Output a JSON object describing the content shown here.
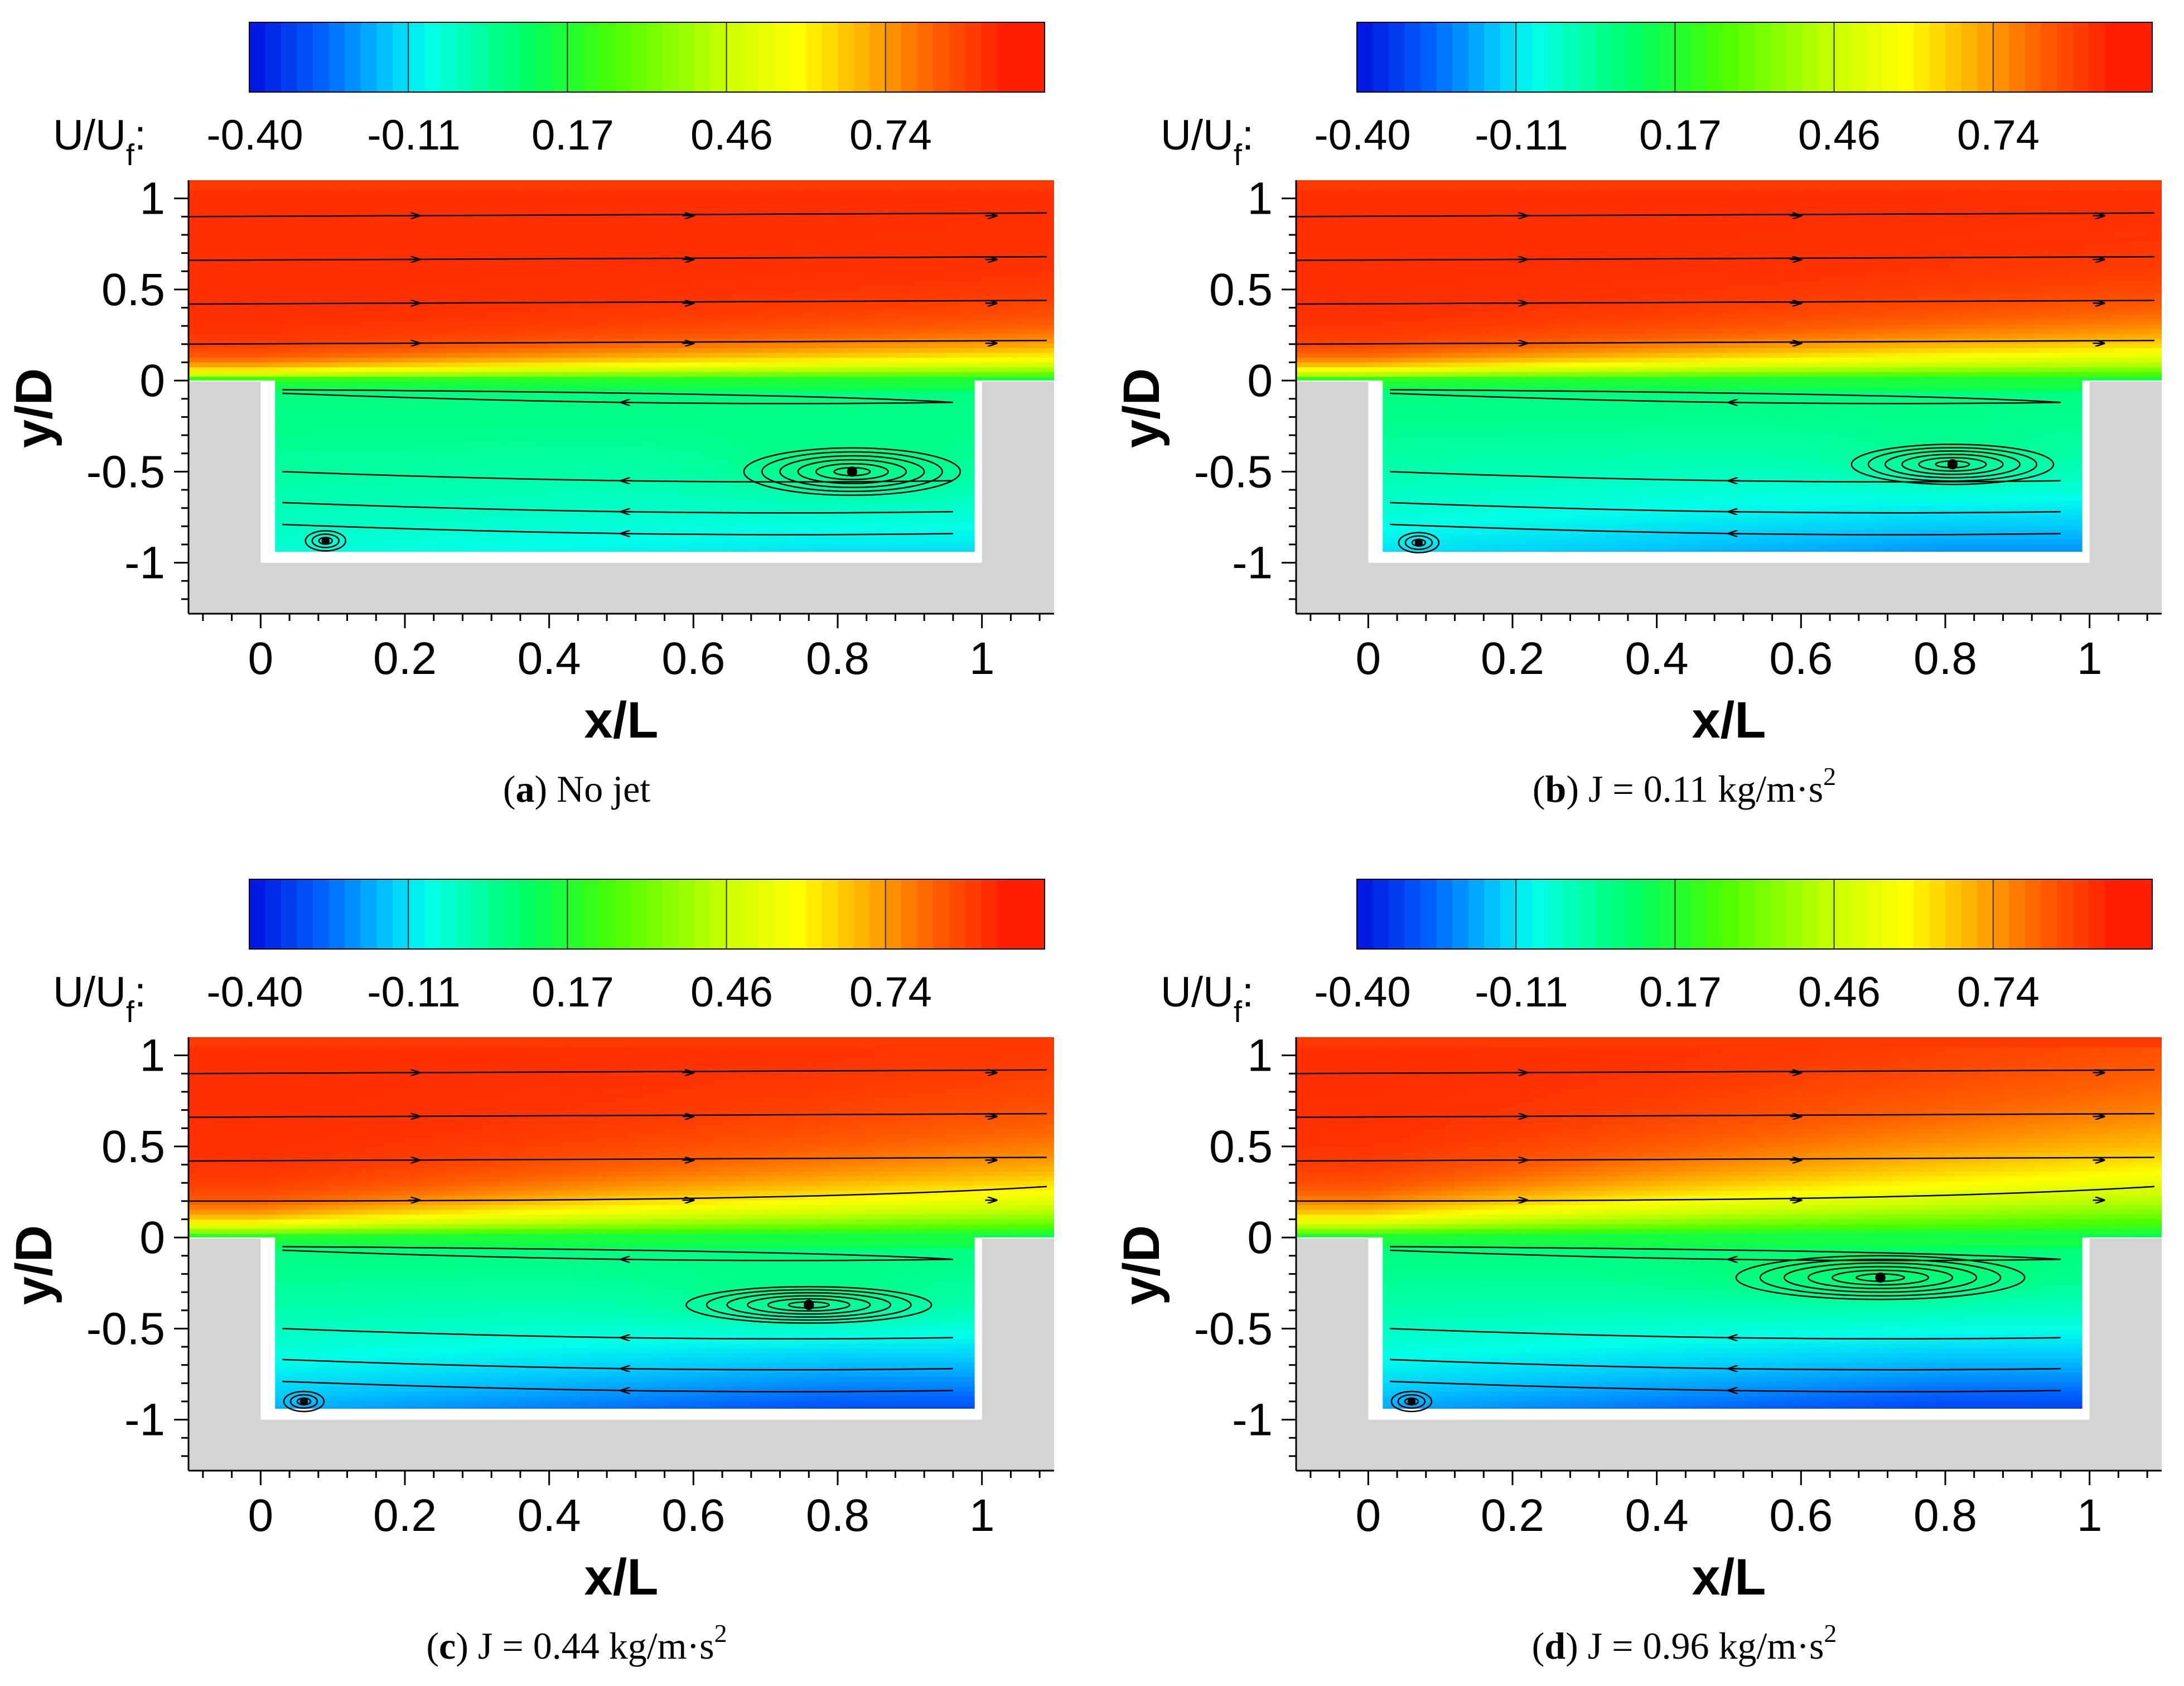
{
  "colorbar": {
    "label_main": "U/U",
    "label_sub": "f",
    "label_suffix": ":",
    "ticks": [
      "-0.40",
      "-0.11",
      "0.17",
      "0.46",
      "0.74"
    ],
    "colors": [
      "#0010e0",
      "#0068ff",
      "#00c8ff",
      "#00ffe8",
      "#00ff60",
      "#48ff00",
      "#c8ff00",
      "#ffff00",
      "#ffb000",
      "#ff6000",
      "#ff2000"
    ]
  },
  "colors": {
    "wall": "#d4d4d4",
    "streamline": "#000000"
  },
  "panels": [
    {
      "id": "a",
      "caption": {
        "letter": "a",
        "text": "No jet"
      },
      "chart_data": {
        "type": "heatmap",
        "quantity": "U/U_f",
        "xlabel": "x/L",
        "ylabel": "y/D",
        "xlim": [
          -0.1,
          1.1
        ],
        "ylim": [
          -1.28,
          1.1
        ],
        "xticks": [
          "0",
          "0.2",
          "0.4",
          "0.6",
          "0.8",
          "1"
        ],
        "yticks": [
          "1",
          "0.5",
          "0",
          "-0.5",
          "-1"
        ],
        "main_vortex": {
          "x": 0.82,
          "y": -0.5,
          "rx": 0.15,
          "ry": 0.13
        },
        "corner_vortex": {
          "x": 0.09,
          "y": -0.88
        },
        "shear_layer_spread": 0.05,
        "cavity_floor_value": -0.2
      }
    },
    {
      "id": "b",
      "caption": {
        "letter": "b",
        "text": "J = 0.11  kg/m·s",
        "sup": "2"
      },
      "chart_data": {
        "type": "heatmap",
        "quantity": "U/U_f",
        "xlabel": "x/L",
        "ylabel": "y/D",
        "xlim": [
          -0.1,
          1.1
        ],
        "ylim": [
          -1.28,
          1.1
        ],
        "xticks": [
          "0",
          "0.2",
          "0.4",
          "0.6",
          "0.8",
          "1"
        ],
        "yticks": [
          "1",
          "0.5",
          "0",
          "-0.5",
          "-1"
        ],
        "main_vortex": {
          "x": 0.81,
          "y": -0.46,
          "rx": 0.14,
          "ry": 0.11
        },
        "corner_vortex": {
          "x": 0.07,
          "y": -0.89
        },
        "shear_layer_spread": 0.07,
        "cavity_floor_value": -0.3
      }
    },
    {
      "id": "c",
      "caption": {
        "letter": "c",
        "text": "J = 0.44  kg/m·s",
        "sup": "2"
      },
      "chart_data": {
        "type": "heatmap",
        "quantity": "U/U_f",
        "xlabel": "x/L",
        "ylabel": "y/D",
        "xlim": [
          -0.1,
          1.1
        ],
        "ylim": [
          -1.28,
          1.1
        ],
        "xticks": [
          "0",
          "0.2",
          "0.4",
          "0.6",
          "0.8",
          "1"
        ],
        "yticks": [
          "1",
          "0.5",
          "0",
          "-0.5",
          "-1"
        ],
        "main_vortex": {
          "x": 0.76,
          "y": -0.37,
          "rx": 0.17,
          "ry": 0.1
        },
        "corner_vortex": {
          "x": 0.06,
          "y": -0.9
        },
        "shear_layer_spread": 0.12,
        "cavity_floor_value": -0.4
      }
    },
    {
      "id": "d",
      "caption": {
        "letter": "d",
        "text": "J = 0.96  kg/m·s",
        "sup": "2"
      },
      "chart_data": {
        "type": "heatmap",
        "quantity": "U/U_f",
        "xlabel": "x/L",
        "ylabel": "y/D",
        "xlim": [
          -0.1,
          1.1
        ],
        "ylim": [
          -1.28,
          1.1
        ],
        "xticks": [
          "0",
          "0.2",
          "0.4",
          "0.6",
          "0.8",
          "1"
        ],
        "yticks": [
          "1",
          "0.5",
          "0",
          "-0.5",
          "-1"
        ],
        "main_vortex": {
          "x": 0.71,
          "y": -0.22,
          "rx": 0.2,
          "ry": 0.12
        },
        "corner_vortex": {
          "x": 0.06,
          "y": -0.9
        },
        "shear_layer_spread": 0.18,
        "cavity_floor_value": -0.42
      }
    }
  ]
}
